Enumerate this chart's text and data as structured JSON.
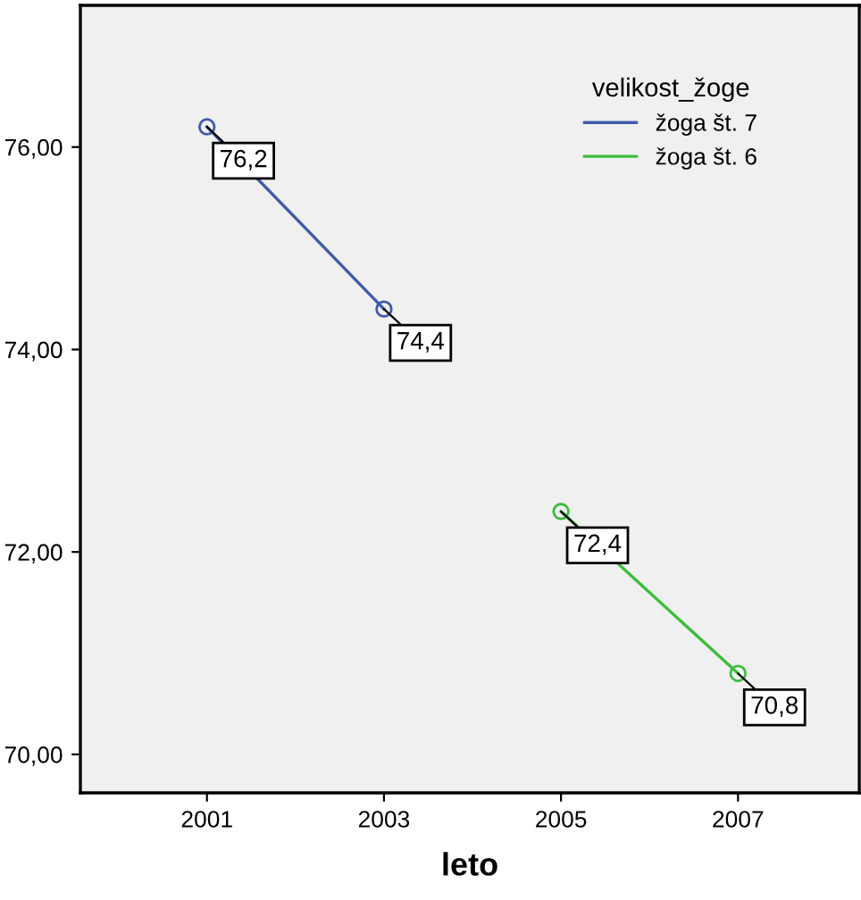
{
  "chart_data": {
    "type": "line",
    "xlabel": "leto",
    "legend_title": "velikost_žoge",
    "legend": "top right",
    "marker": "circle",
    "line_style": "solid",
    "grid": false,
    "xlim": [
      1999.57,
      2008.37
    ],
    "xticks": [
      2001,
      2003,
      2005,
      2007
    ],
    "ylim": [
      69.62,
      77.4
    ],
    "yticks": [
      {
        "value": 70,
        "label": "70,00"
      },
      {
        "value": 72,
        "label": "72,00"
      },
      {
        "value": 74,
        "label": "74,00"
      },
      {
        "value": 76,
        "label": "76,00"
      }
    ],
    "series": [
      {
        "name": "žoga št. 7",
        "color": "#3e5bab",
        "x": [
          2001,
          2003
        ],
        "values": [
          76.2,
          74.4
        ],
        "value_labels": [
          "76,2",
          "74,4"
        ]
      },
      {
        "name": "žoga št. 6",
        "color": "#3dbd3d",
        "x": [
          2005,
          2007
        ],
        "values": [
          72.4,
          70.8
        ],
        "value_labels": [
          "72,4",
          "70,8"
        ]
      }
    ]
  }
}
